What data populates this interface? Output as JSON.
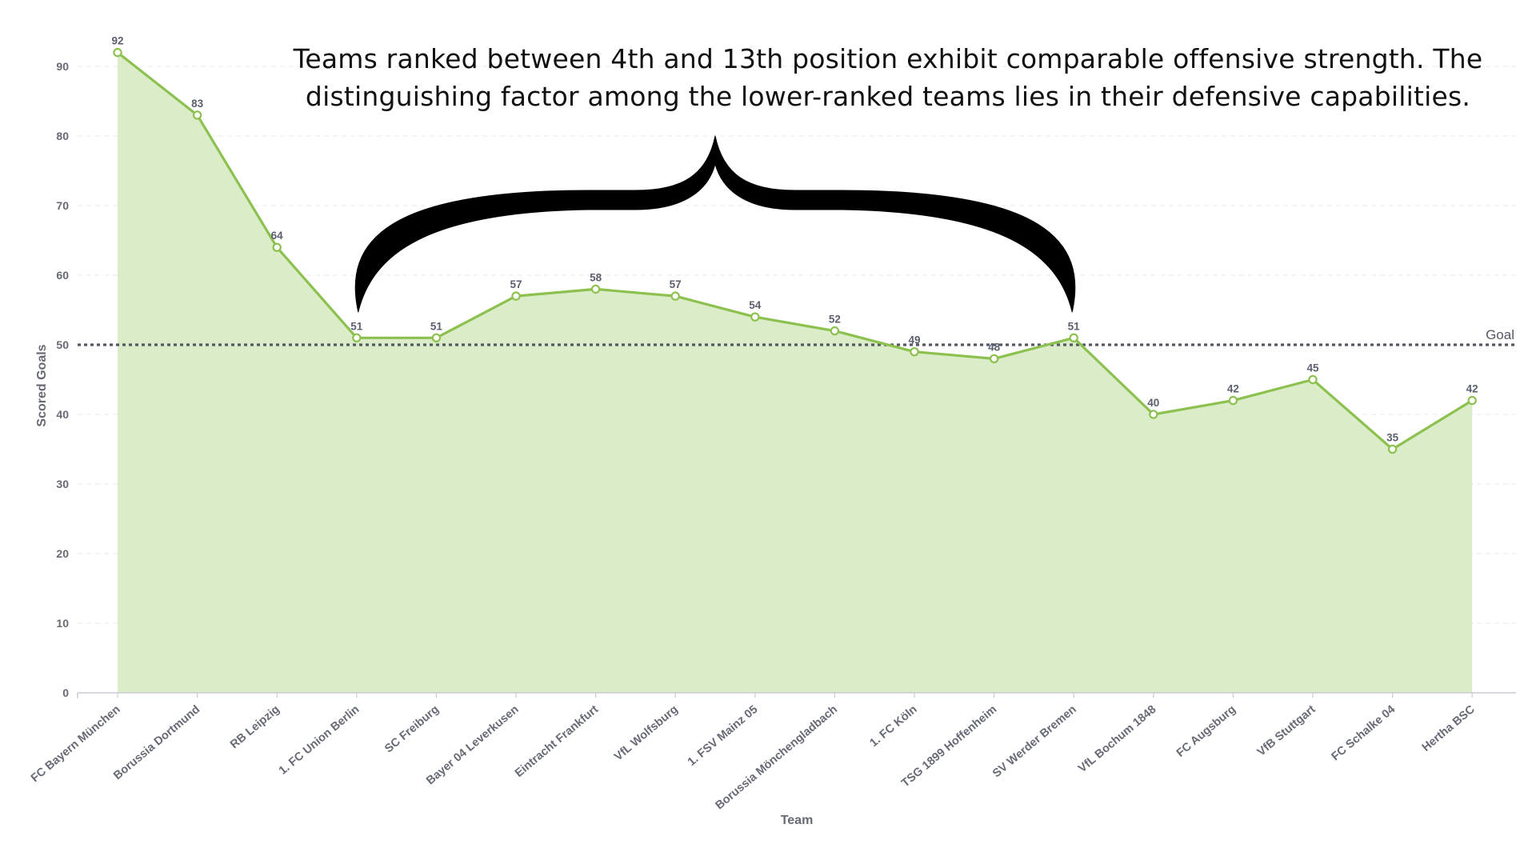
{
  "chart_data": {
    "type": "area",
    "xlabel": "Team",
    "ylabel": "Scored Goals",
    "ylim": [
      0,
      95
    ],
    "y_ticks": [
      0,
      10,
      20,
      30,
      40,
      50,
      60,
      70,
      80,
      90
    ],
    "grid": "horizontal dashed",
    "categories": [
      "FC Bayern München",
      "Borussia Dortmund",
      "RB Leipzig",
      "1. FC Union Berlin",
      "SC Freiburg",
      "Bayer 04 Leverkusen",
      "Eintracht Frankfurt",
      "VfL Wolfsburg",
      "1. FSV Mainz 05",
      "Borussia Mönchengladbach",
      "1. FC Köln",
      "TSG 1899 Hoffenheim",
      "SV Werder Bremen",
      "VfL Bochum 1848",
      "FC Augsburg",
      "VfB Stuttgart",
      "FC Schalke 04",
      "Hertha BSC"
    ],
    "values": [
      92,
      83,
      64,
      51,
      51,
      57,
      58,
      57,
      54,
      52,
      49,
      48,
      51,
      40,
      42,
      45,
      35,
      42
    ],
    "reference_line": {
      "label": "Goal",
      "value": 50,
      "style": "dotted"
    },
    "annotation": {
      "lines": [
        "Teams ranked between 4th and 13th position exhibit comparable offensive strength. The",
        "distinguishing factor among the lower-ranked teams lies in their defensive capabilities."
      ],
      "brace_from_category": "1. FC Union Berlin",
      "brace_to_category": "SV Werder Bremen"
    },
    "colors": {
      "line": "#8dc14f",
      "area": "#dbecc9",
      "marker_fill": "#ffffff",
      "reference_line": "#555966",
      "text": "#666a75",
      "brace": "#000000"
    }
  }
}
